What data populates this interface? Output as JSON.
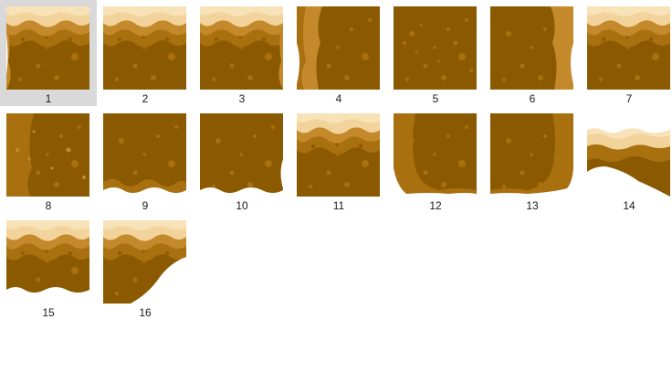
{
  "colors": {
    "dirt_dark": "#8b5a00",
    "dirt_mid": "#a8700f",
    "dirt_light": "#c4892a",
    "sand": "#f3d39c",
    "sand_light": "#f8e2b8",
    "selection": "#d9d9d9"
  },
  "files": [
    {
      "label": "1",
      "variant": "top-left",
      "selected": true
    },
    {
      "label": "2",
      "variant": "top"
    },
    {
      "label": "3",
      "variant": "top-right"
    },
    {
      "label": "4",
      "variant": "left"
    },
    {
      "label": "5",
      "variant": "center"
    },
    {
      "label": "6",
      "variant": "right"
    },
    {
      "label": "7",
      "variant": "top"
    },
    {
      "label": "8",
      "variant": "center-dots"
    },
    {
      "label": "9",
      "variant": "bottom"
    },
    {
      "label": "10",
      "variant": "bottom-right-edge"
    },
    {
      "label": "11",
      "variant": "top"
    },
    {
      "label": "12",
      "variant": "bottom-left"
    },
    {
      "label": "13",
      "variant": "bottom-right"
    },
    {
      "label": "14",
      "variant": "slope"
    },
    {
      "label": "15",
      "variant": "top-bottom"
    },
    {
      "label": "16",
      "variant": "slope-left"
    }
  ]
}
